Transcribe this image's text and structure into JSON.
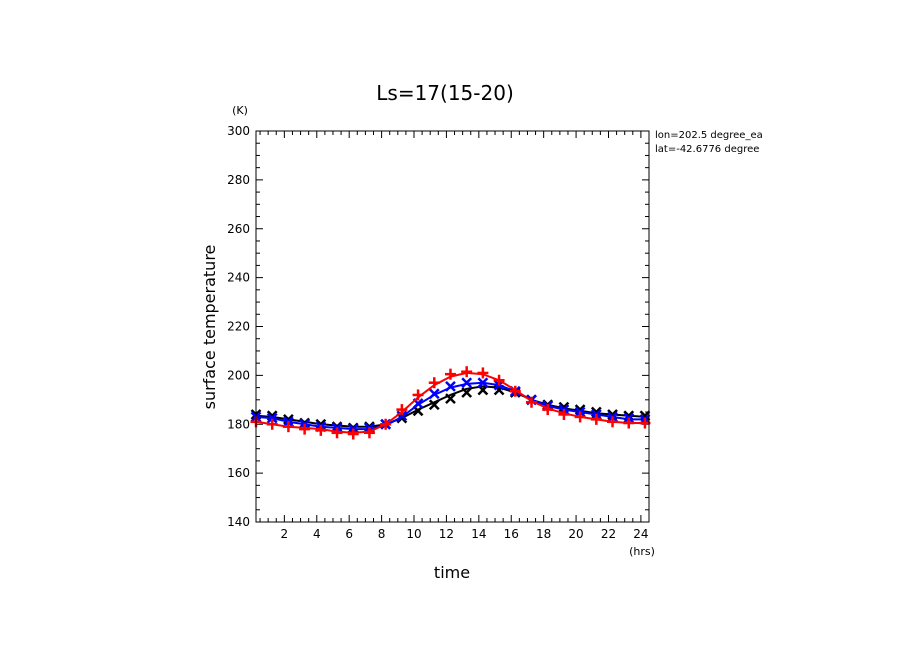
{
  "chart_data": {
    "type": "line",
    "title": "Ls=17(15-20)",
    "xlabel": "time",
    "ylabel": "surface temperature",
    "x_unit": "(hrs)",
    "y_unit": "(K)",
    "xlim": [
      0.25,
      24.5
    ],
    "ylim": [
      140,
      300
    ],
    "xticks": [
      2,
      4,
      6,
      8,
      10,
      12,
      14,
      16,
      18,
      20,
      22,
      24
    ],
    "yticks": [
      140,
      160,
      180,
      200,
      220,
      240,
      260,
      280,
      300
    ],
    "annotations": [
      "lon=202.5 degree_ea",
      "lat=-42.6776 degree"
    ],
    "grid": false,
    "x": [
      0.25,
      1.25,
      2.25,
      3.25,
      4.25,
      5.25,
      6.25,
      7.25,
      8.25,
      9.25,
      10.25,
      11.25,
      12.25,
      13.25,
      14.25,
      15.25,
      16.25,
      17.25,
      18.25,
      19.25,
      20.25,
      21.25,
      22.25,
      23.25,
      24.25
    ],
    "series": [
      {
        "color": "#000000",
        "marker": "x",
        "line": [
          183.5,
          183,
          182,
          181,
          180,
          179.5,
          179,
          179,
          180,
          182.5,
          186,
          189,
          192,
          194.5,
          195.5,
          195,
          193,
          190,
          188,
          186.5,
          185.5,
          184.5,
          184,
          183.5,
          183
        ],
        "markers": [
          184,
          183.5,
          182,
          180.5,
          180,
          179,
          178.5,
          179,
          180,
          182.5,
          185.5,
          188,
          190.5,
          193,
          194,
          194,
          193,
          190,
          188,
          187,
          186,
          185,
          184,
          183.5,
          183.5
        ]
      },
      {
        "color": "#0000ff",
        "marker": "x",
        "line": [
          183,
          182.5,
          181,
          180,
          179,
          178.5,
          178,
          178,
          179.5,
          183,
          188,
          192,
          195,
          196.5,
          197,
          196,
          193.5,
          190,
          187.5,
          186,
          185,
          184,
          183,
          182,
          182
        ],
        "markers": [
          183,
          182.5,
          181,
          180,
          179,
          178.5,
          178,
          178.5,
          180,
          183.5,
          188.5,
          192.5,
          195.5,
          197,
          197,
          196,
          193.5,
          190,
          187.5,
          186,
          185,
          184,
          183,
          182.5,
          182
        ]
      },
      {
        "color": "#ff0000",
        "marker": "+",
        "line": [
          181,
          180,
          179,
          178.5,
          178,
          177,
          176.5,
          177,
          180,
          185,
          191,
          196,
          199.5,
          201,
          200.5,
          198,
          194,
          189.5,
          186.5,
          184.5,
          183,
          182,
          181,
          180.5,
          180.5
        ],
        "markers": [
          181,
          180,
          179,
          178,
          177.5,
          176.5,
          176,
          176.5,
          180,
          186,
          192,
          197,
          200.5,
          201.5,
          201,
          198,
          193.5,
          189,
          186,
          184,
          183,
          182,
          181,
          180.5,
          180.5
        ]
      }
    ]
  }
}
